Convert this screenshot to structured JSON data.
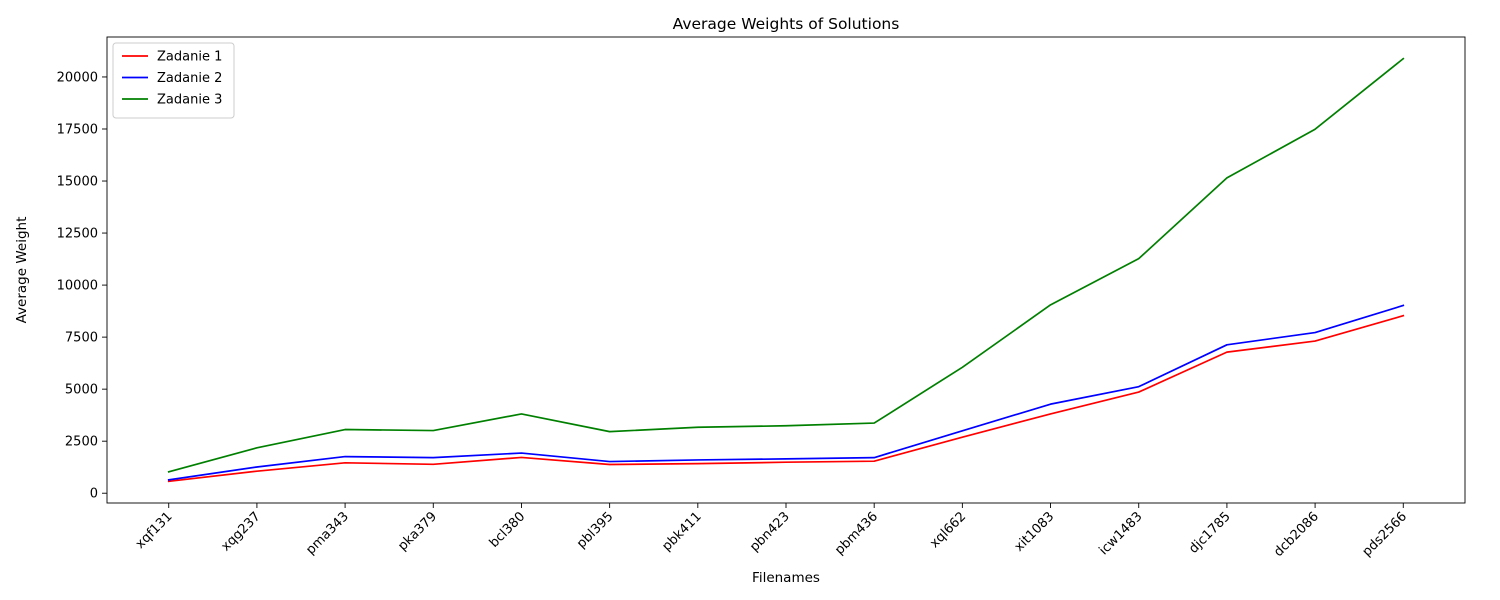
{
  "chart_data": {
    "type": "line",
    "title": "Average Weights of Solutions",
    "xlabel": "Filenames",
    "ylabel": "Average Weight",
    "categories": [
      "xqf131",
      "xqg237",
      "pma343",
      "pka379",
      "bcl380",
      "pbl395",
      "pbk411",
      "pbn423",
      "pbm436",
      "xql662",
      "xit1083",
      "icw1483",
      "djc1785",
      "dcb2086",
      "pds2566"
    ],
    "y_ticks": [
      0,
      2500,
      5000,
      7500,
      10000,
      12500,
      15000,
      17500,
      20000
    ],
    "ylim": [
      -470,
      21920
    ],
    "grid": false,
    "legend_position": "top-left",
    "series": [
      {
        "name": "Zadanie 1",
        "color": "#ff0000",
        "values": [
          570,
          1060,
          1460,
          1390,
          1720,
          1380,
          1420,
          1490,
          1540,
          2690,
          3810,
          4860,
          6780,
          7310,
          8530
        ]
      },
      {
        "name": "Zadanie 2",
        "color": "#0000ff",
        "values": [
          640,
          1260,
          1760,
          1710,
          1930,
          1520,
          1600,
          1650,
          1710,
          3000,
          4280,
          5120,
          7130,
          7720,
          9020
        ]
      },
      {
        "name": "Zadanie 3",
        "color": "#008000",
        "values": [
          1030,
          2180,
          3060,
          3010,
          3810,
          2960,
          3170,
          3240,
          3370,
          6050,
          9050,
          11270,
          15150,
          17490,
          20880
        ]
      }
    ]
  }
}
